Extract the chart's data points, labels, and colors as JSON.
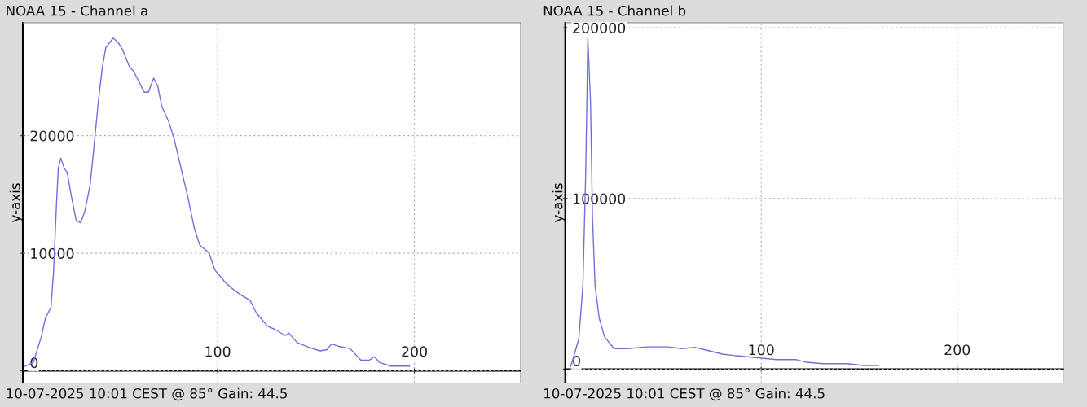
{
  "chart_data": [
    {
      "type": "line",
      "title": "NOAA 15 - Channel a",
      "ylabel": "y-axis",
      "annotations": [
        "10-07-2025 10:01 CEST @ 85° Gain: 44.5"
      ],
      "xlim": [
        1,
        254
      ],
      "ylim": [
        -1000,
        29600
      ],
      "xticks": [
        100,
        200
      ],
      "yticks": [
        0,
        10000,
        20000
      ],
      "grid": true,
      "x": [
        2.2,
        6.3,
        10.4,
        12.5,
        15.3,
        16.6,
        18,
        19,
        20.3,
        22.1,
        23.5,
        25.6,
        28.1,
        30.4,
        32.4,
        35.2,
        37.3,
        39.3,
        41.4,
        43.2,
        46.9,
        49.6,
        51.7,
        55.1,
        57.2,
        60,
        62.7,
        64.8,
        67.5,
        69.6,
        71.6,
        75.1,
        77.8,
        82,
        84.7,
        88.2,
        90.9,
        93.7,
        95.7,
        98.5,
        104,
        108.1,
        112.3,
        116.4,
        119.8,
        125.3,
        129.4,
        134.3,
        136.3,
        140.4,
        148,
        152.1,
        155.6,
        157.9,
        161.1,
        167.3,
        172.8,
        176.9,
        179.7,
        182.4,
        188,
        197.5
      ],
      "series": [
        {
          "color": "#6f6fdc",
          "values": [
            400,
            700,
            2900,
            4500,
            5400,
            8400,
            13800,
            17200,
            18100,
            17200,
            16900,
            14900,
            12800,
            12600,
            13500,
            15800,
            19300,
            22800,
            25800,
            27500,
            28300,
            27900,
            27300,
            25900,
            25500,
            24600,
            23700,
            23700,
            24900,
            24200,
            22500,
            21200,
            19800,
            16800,
            14900,
            12100,
            10700,
            10300,
            10000,
            8600,
            7500,
            6900,
            6400,
            6000,
            4900,
            3800,
            3500,
            3000,
            3200,
            2400,
            1900,
            1700,
            1800,
            2300,
            2100,
            1900,
            900,
            900,
            1200,
            700,
            400,
            400
          ]
        }
      ]
    },
    {
      "type": "line",
      "title": "NOAA 15 - Channel b",
      "ylabel": "y-axis",
      "annotations": [
        "10-07-2025 10:01 CEST @ 85° Gain: 44.5"
      ],
      "xlim": [
        0,
        254
      ],
      "ylim": [
        -7900,
        202900
      ],
      "xticks": [
        100,
        200
      ],
      "yticks": [
        0,
        100000,
        200000
      ],
      "grid": true,
      "x": [
        2.8,
        6.9,
        9,
        10.4,
        11.1,
        11.5,
        12,
        12.9,
        13.9,
        15.2,
        17.3,
        20,
        24.9,
        31.8,
        41.5,
        52.6,
        59.5,
        66.4,
        71.9,
        80.2,
        85.7,
        88.5,
        107.9,
        117.6,
        123.1,
        131.4,
        143.9,
        152.1,
        159.8
      ],
      "series": [
        {
          "color": "#6f6fdc",
          "values": [
            1600,
            17500,
            49000,
            113000,
            161000,
            194000,
            181000,
            156000,
            89000,
            49000,
            30000,
            19000,
            12000,
            12000,
            13000,
            13000,
            12000,
            12700,
            11200,
            8800,
            8000,
            7700,
            5600,
            5600,
            4000,
            3200,
            3200,
            2100,
            2100
          ]
        }
      ]
    }
  ]
}
